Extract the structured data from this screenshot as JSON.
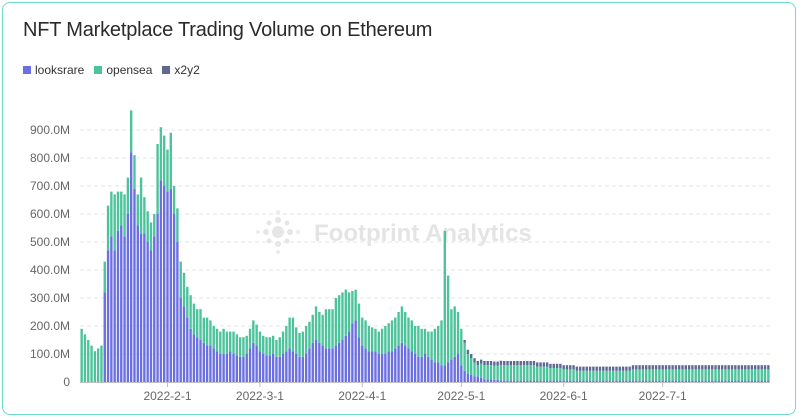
{
  "title": "NFT Marketplace Trading Volume on Ethereum",
  "watermark": "Footprint Analytics",
  "colors": {
    "looksrare": "#6b6fe0",
    "opensea": "#4cc39a",
    "x2y2": "#5d6893",
    "grid": "#e6e6e6",
    "axis": "#bfbfbf"
  },
  "chart_data": {
    "type": "bar",
    "stacked": true,
    "title": "NFT Marketplace Trading Volume on Ethereum",
    "xlabel": "",
    "ylabel": "",
    "ylim": [
      0,
      1000000000
    ],
    "legend_position": "top-left",
    "grid": true,
    "x_tick_labels": [
      "2022-2-1",
      "2022-3-1",
      "2022-4-1",
      "2022-5-1",
      "2022-6-1",
      "2022-7-1"
    ],
    "x_tick_indices": [
      26,
      54,
      85,
      115,
      146,
      176
    ],
    "y_tick_labels": [
      "0",
      "100.0M",
      "200.0M",
      "300.0M",
      "400.0M",
      "500.0M",
      "600.0M",
      "700.0M",
      "800.0M",
      "900.0M"
    ],
    "y_tick_values": [
      0,
      100000000,
      200000000,
      300000000,
      400000000,
      500000000,
      600000000,
      700000000,
      800000000,
      900000000
    ],
    "start_date": "2022-01-06",
    "series": [
      {
        "name": "looksrare",
        "values": [
          0,
          0,
          0,
          0,
          0,
          0,
          0,
          320,
          470,
          520,
          470,
          540,
          560,
          520,
          600,
          820,
          690,
          560,
          530,
          530,
          500,
          470,
          520,
          600,
          720,
          700,
          680,
          690,
          600,
          500,
          300,
          270,
          230,
          190,
          170,
          160,
          150,
          140,
          130,
          130,
          120,
          110,
          100,
          100,
          100,
          110,
          100,
          95,
          90,
          90,
          100,
          120,
          140,
          130,
          110,
          100,
          95,
          95,
          100,
          90,
          90,
          100,
          110,
          120,
          110,
          100,
          90,
          90,
          100,
          120,
          140,
          150,
          140,
          130,
          120,
          120,
          120,
          130,
          140,
          150,
          165,
          180,
          210,
          220,
          160,
          130,
          120,
          110,
          110,
          110,
          100,
          100,
          100,
          110,
          110,
          120,
          130,
          140,
          130,
          120,
          110,
          100,
          90,
          90,
          100,
          90,
          80,
          70,
          70,
          60,
          60,
          70,
          80,
          90,
          100,
          60,
          40,
          30,
          25,
          20,
          20,
          15,
          10,
          10,
          10,
          8,
          8,
          6,
          5,
          5,
          5,
          5,
          5,
          5,
          5,
          5,
          5,
          5,
          5,
          5,
          5,
          5,
          5,
          5,
          5,
          5,
          5,
          5,
          5,
          5,
          5,
          5,
          5,
          5,
          5,
          5,
          5,
          5,
          5,
          5,
          5,
          5,
          5,
          5,
          5,
          5,
          5,
          5,
          5,
          5,
          5,
          5,
          5,
          5,
          5,
          5,
          5,
          5,
          5,
          5,
          5,
          5,
          5,
          5,
          5,
          5,
          5,
          5,
          5,
          5,
          5,
          5,
          5,
          5,
          5,
          5,
          5,
          5,
          5,
          5,
          5,
          5,
          5,
          5,
          5,
          5,
          5,
          5,
          5
        ]
      },
      {
        "name": "opensea",
        "values": [
          190,
          170,
          150,
          130,
          110,
          120,
          130,
          110,
          160,
          160,
          200,
          140,
          120,
          150,
          130,
          150,
          120,
          110,
          200,
          130,
          110,
          100,
          80,
          250,
          190,
          180,
          150,
          200,
          100,
          120,
          130,
          120,
          110,
          120,
          110,
          100,
          110,
          90,
          100,
          90,
          80,
          80,
          80,
          90,
          80,
          70,
          80,
          75,
          70,
          70,
          65,
          70,
          80,
          75,
          70,
          65,
          65,
          65,
          65,
          60,
          70,
          80,
          90,
          110,
          120,
          95,
          85,
          90,
          100,
          95,
          100,
          120,
          110,
          110,
          140,
          140,
          140,
          170,
          170,
          170,
          165,
          140,
          115,
          110,
          120,
          100,
          100,
          90,
          85,
          80,
          80,
          90,
          100,
          100,
          110,
          110,
          120,
          130,
          120,
          110,
          110,
          100,
          110,
          100,
          90,
          90,
          100,
          120,
          130,
          160,
          480,
          310,
          180,
          180,
          150,
          130,
          100,
          70,
          60,
          50,
          40,
          50,
          50,
          50,
          50,
          50,
          50,
          55,
          55,
          55,
          55,
          55,
          55,
          55,
          55,
          55,
          55,
          55,
          50,
          50,
          50,
          50,
          45,
          45,
          45,
          45,
          40,
          40,
          40,
          40,
          35,
          35,
          35,
          35,
          35,
          35,
          35,
          35,
          35,
          35,
          35,
          35,
          35,
          35,
          35,
          35,
          35,
          40,
          40,
          40,
          40,
          40,
          40,
          40,
          40,
          40,
          40,
          40,
          40,
          40,
          40,
          40,
          40,
          40,
          40,
          40,
          40,
          40,
          40,
          40,
          40,
          40,
          40,
          40,
          40,
          40,
          40,
          40,
          40,
          40,
          40,
          40,
          40,
          40,
          40,
          40,
          40,
          40,
          40,
          40,
          40,
          40
        ]
      },
      {
        "name": "x2y2",
        "values": [
          0,
          0,
          0,
          0,
          0,
          0,
          0,
          0,
          0,
          0,
          0,
          0,
          0,
          0,
          0,
          0,
          0,
          0,
          0,
          0,
          0,
          0,
          0,
          0,
          0,
          0,
          0,
          0,
          0,
          0,
          0,
          0,
          0,
          0,
          0,
          0,
          0,
          0,
          0,
          0,
          0,
          0,
          0,
          0,
          0,
          0,
          0,
          0,
          0,
          0,
          0,
          0,
          0,
          0,
          0,
          0,
          0,
          0,
          0,
          0,
          0,
          0,
          0,
          0,
          0,
          0,
          0,
          0,
          0,
          0,
          0,
          0,
          0,
          0,
          0,
          0,
          0,
          0,
          0,
          0,
          0,
          0,
          0,
          0,
          0,
          0,
          0,
          0,
          0,
          0,
          0,
          0,
          0,
          0,
          0,
          0,
          0,
          0,
          0,
          0,
          0,
          0,
          0,
          0,
          0,
          0,
          0,
          0,
          0,
          0,
          0,
          0,
          0,
          0,
          0,
          0,
          10,
          15,
          15,
          15,
          15,
          15,
          15,
          15,
          15,
          15,
          15,
          15,
          15,
          15,
          15,
          15,
          15,
          15,
          15,
          15,
          15,
          15,
          15,
          15,
          15,
          15,
          15,
          15,
          15,
          15,
          15,
          15,
          15,
          15,
          15,
          15,
          15,
          15,
          15,
          15,
          15,
          15,
          15,
          15,
          15,
          15,
          15,
          15,
          15,
          15,
          15,
          15,
          15,
          15,
          15,
          15,
          15,
          15,
          15,
          15,
          15,
          15,
          15,
          15,
          15,
          15,
          15,
          15,
          15,
          15,
          15,
          15,
          15,
          15,
          15,
          15,
          15,
          15,
          15,
          15,
          15,
          15,
          15,
          15,
          15,
          15,
          15,
          15,
          15,
          15,
          15,
          15,
          15,
          15,
          15,
          15
        ]
      }
    ],
    "value_unit": "M"
  }
}
